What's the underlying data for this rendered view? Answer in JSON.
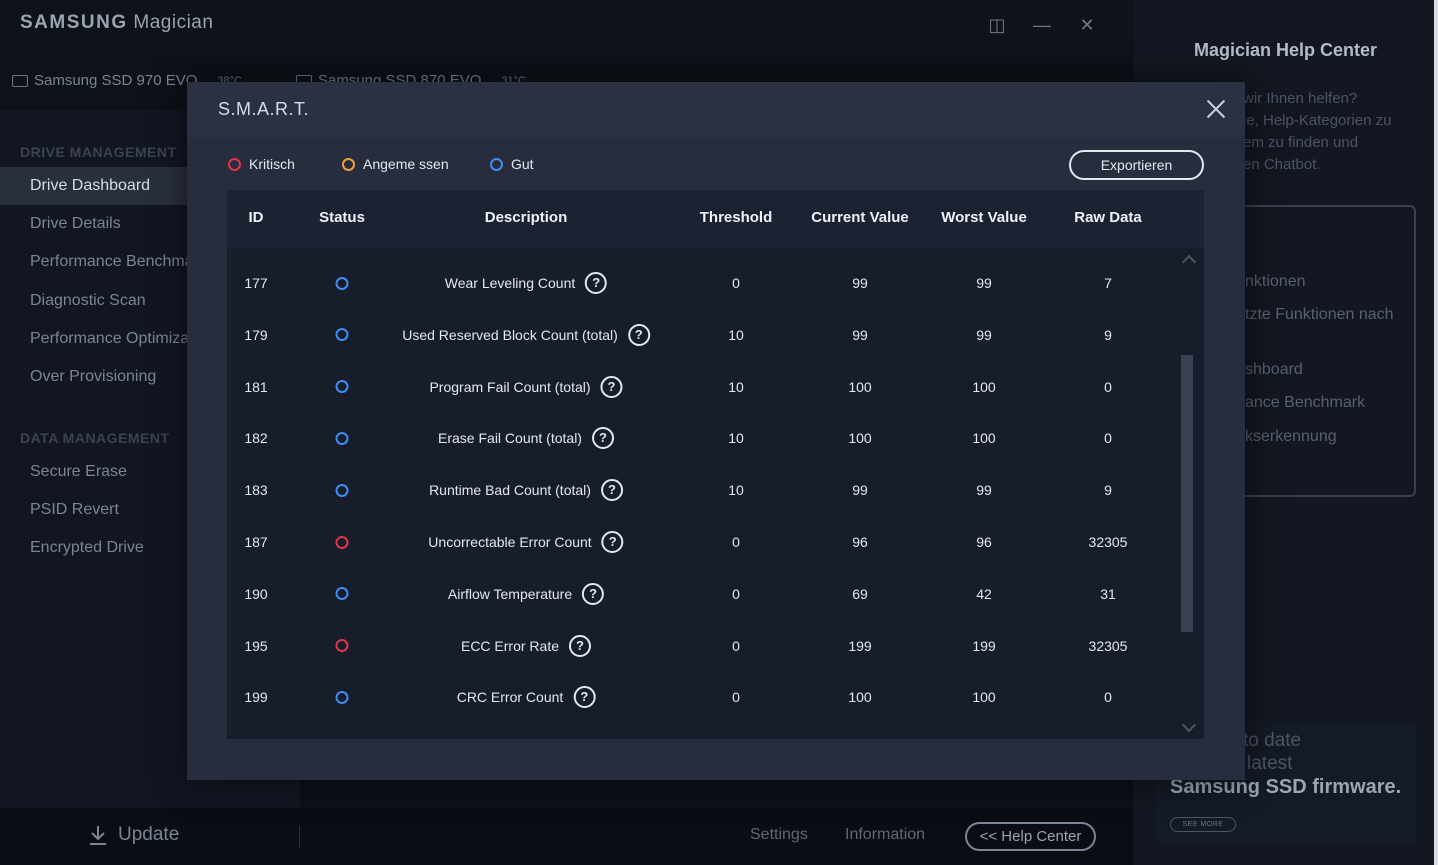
{
  "app": {
    "brand_bold": "SAMSUNG",
    "brand_light": "Magician",
    "drives": [
      {
        "name": "Samsung SSD 970 EVO",
        "temp": "38°C"
      },
      {
        "name": "Samsung SSD 870 EVO",
        "temp": "31°C"
      }
    ]
  },
  "sidebar": {
    "drive_management_heading": "DRIVE MANAGEMENT",
    "drive_items": [
      "Drive Dashboard",
      "Drive Details",
      "Performance Benchmark",
      "Diagnostic Scan",
      "Performance Optimization",
      "Over Provisioning"
    ],
    "data_management_heading": "DATA MANAGEMENT",
    "data_items": [
      "Secure Erase",
      "PSID Revert",
      "Encrypted Drive"
    ]
  },
  "bottom": {
    "update": "Update",
    "settings": "Settings",
    "information": "Information",
    "help_center": "<< Help Center"
  },
  "help_panel": {
    "title": "Magician Help Center",
    "intro": [
      "wir Ihnen helfen?",
      "ie, Help-Kategorien zu",
      "em zu finden und",
      "en Chatbot."
    ],
    "items": [
      "nktionen",
      "tzte Funktionen nach",
      "shboard",
      "ance Benchmark",
      "kserkennung"
    ],
    "promo_lines": [
      "to date",
      "latest"
    ],
    "promo_strong": "Samsung SSD firmware.",
    "see_more": "SEE MORE"
  },
  "modal": {
    "title": "S.M.A.R.T.",
    "legend": {
      "critical": "Kritisch",
      "acceptable": "Angeme ssen",
      "good": "Gut"
    },
    "export": "Exportieren",
    "columns": {
      "id": "ID",
      "status": "Status",
      "description": "Description",
      "threshold": "Threshold",
      "current": "Current Value",
      "worst": "Worst Value",
      "raw": "Raw Data"
    },
    "rows": [
      {
        "id": "177",
        "status": "good",
        "description": "Wear Leveling Count",
        "threshold": "0",
        "current": "99",
        "worst": "99",
        "raw": "7"
      },
      {
        "id": "179",
        "status": "good",
        "description": "Used Reserved Block Count (total)",
        "threshold": "10",
        "current": "99",
        "worst": "99",
        "raw": "9"
      },
      {
        "id": "181",
        "status": "good",
        "description": "Program Fail Count (total)",
        "threshold": "10",
        "current": "100",
        "worst": "100",
        "raw": "0"
      },
      {
        "id": "182",
        "status": "good",
        "description": "Erase Fail Count (total)",
        "threshold": "10",
        "current": "100",
        "worst": "100",
        "raw": "0"
      },
      {
        "id": "183",
        "status": "good",
        "description": "Runtime Bad Count (total)",
        "threshold": "10",
        "current": "99",
        "worst": "99",
        "raw": "9"
      },
      {
        "id": "187",
        "status": "critical",
        "description": "Uncorrectable Error Count",
        "threshold": "0",
        "current": "96",
        "worst": "96",
        "raw": "32305"
      },
      {
        "id": "190",
        "status": "good",
        "description": "Airflow Temperature",
        "threshold": "0",
        "current": "69",
        "worst": "42",
        "raw": "31"
      },
      {
        "id": "195",
        "status": "critical",
        "description": "ECC Error Rate",
        "threshold": "0",
        "current": "199",
        "worst": "199",
        "raw": "32305"
      },
      {
        "id": "199",
        "status": "good",
        "description": "CRC Error Count",
        "threshold": "0",
        "current": "100",
        "worst": "100",
        "raw": "0"
      }
    ],
    "status_colors": {
      "critical": "#e0344a",
      "acceptable": "#f0a03a",
      "good": "#3f8df0"
    }
  }
}
